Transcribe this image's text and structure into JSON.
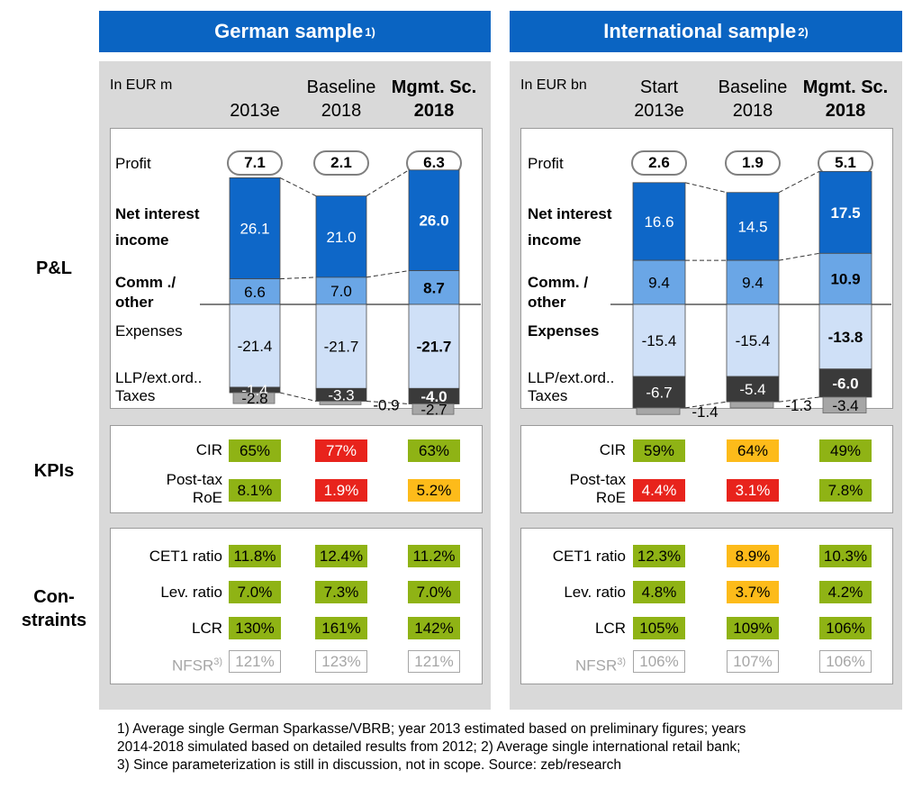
{
  "colors": {
    "header_blue": "#0a64c2",
    "nii": "#0e67c8",
    "comm": "#6aa6e6",
    "expenses": "#cfe0f7",
    "llp": "#3a3a3a",
    "taxes": "#a6a6a6",
    "kpi_green": "#8fb315",
    "kpi_red": "#e8231c",
    "kpi_amber": "#fdbb1a"
  },
  "row_labels": {
    "pl": "P&L",
    "kpis": "KPIs",
    "constraints": [
      "Con-",
      "straints"
    ]
  },
  "line_labels": {
    "profit": "Profit",
    "nii": [
      "Net interest",
      "income"
    ],
    "comm": [
      "Comm ./",
      "other"
    ],
    "comm_int": [
      "Comm. /",
      "other"
    ],
    "expenses": "Expenses",
    "llp": "LLP/ext.ord..",
    "taxes": "Taxes"
  },
  "kpi_labels": {
    "cir": "CIR",
    "roe": [
      "Post-tax",
      "RoE"
    ]
  },
  "constraint_labels": {
    "cet1": "CET1 ratio",
    "lev": "Lev. ratio",
    "lcr": "LCR",
    "nfsr": "NFSR",
    "nfsr_sup": "3)"
  },
  "footnote": [
    "1) Average single German Sparkasse/VBRB; year 2013 estimated based on preliminary figures; years",
    "2014-2018 simulated based on detailed results from 2012; 2) Average single international retail bank;",
    "3) Since parameterization is still in discussion, not in scope. Source: zeb/research"
  ],
  "chart_data": [
    {
      "type": "bar",
      "stacked": true,
      "title": "German sample",
      "title_sup": "1)",
      "unit": "In EUR m",
      "categories": [
        [
          "",
          "2013e"
        ],
        [
          "Baseline",
          "2018"
        ],
        [
          "Mgmt. Sc.",
          "2018"
        ]
      ],
      "profit": [
        "7.1",
        "2.1",
        "6.3"
      ],
      "series": [
        {
          "name": "Net interest income",
          "values": [
            26.1,
            21.0,
            26.0
          ],
          "labels": [
            "26.1",
            "21.0",
            "26.0"
          ]
        },
        {
          "name": "Comm ./ other",
          "values": [
            6.6,
            7.0,
            8.7
          ],
          "labels": [
            "6.6",
            "7.0",
            "8.7"
          ]
        },
        {
          "name": "Expenses",
          "values": [
            -21.4,
            -21.7,
            -21.7
          ],
          "labels": [
            "-21.4",
            "-21.7",
            "-21.7"
          ]
        },
        {
          "name": "LLP/ext.ord..",
          "values": [
            -1.4,
            -3.3,
            -4.0
          ],
          "labels": [
            "-1.4",
            "-3.3",
            "-4.0"
          ]
        },
        {
          "name": "Taxes",
          "values": [
            -2.8,
            -0.9,
            -2.7
          ],
          "labels": [
            "-2.8",
            "-0.9",
            "-2.7"
          ]
        }
      ],
      "kpis": {
        "cir": [
          {
            "v": "65%",
            "s": "green"
          },
          {
            "v": "77%",
            "s": "red"
          },
          {
            "v": "63%",
            "s": "green"
          }
        ],
        "roe": [
          {
            "v": "8.1%",
            "s": "green"
          },
          {
            "v": "1.9%",
            "s": "red"
          },
          {
            "v": "5.2%",
            "s": "amber"
          }
        ]
      },
      "constraints": {
        "cet1": [
          {
            "v": "11.8%",
            "s": "green"
          },
          {
            "v": "12.4%",
            "s": "green"
          },
          {
            "v": "11.2%",
            "s": "green"
          }
        ],
        "lev": [
          {
            "v": "7.0%",
            "s": "green"
          },
          {
            "v": "7.3%",
            "s": "green"
          },
          {
            "v": "7.0%",
            "s": "green"
          }
        ],
        "lcr": [
          {
            "v": "130%",
            "s": "green"
          },
          {
            "v": "161%",
            "s": "green"
          },
          {
            "v": "142%",
            "s": "green"
          }
        ],
        "nfsr": [
          {
            "v": "121%",
            "s": "grey"
          },
          {
            "v": "123%",
            "s": "grey"
          },
          {
            "v": "121%",
            "s": "grey"
          }
        ]
      }
    },
    {
      "type": "bar",
      "stacked": true,
      "title": "International sample",
      "title_sup": "2)",
      "unit": "In EUR bn",
      "categories": [
        [
          "Start",
          "2013e"
        ],
        [
          "Baseline",
          "2018"
        ],
        [
          "Mgmt. Sc.",
          "2018"
        ]
      ],
      "profit": [
        "2.6",
        "1.9",
        "5.1"
      ],
      "series": [
        {
          "name": "Net interest income",
          "values": [
            16.6,
            14.5,
            17.5
          ],
          "labels": [
            "16.6",
            "14.5",
            "17.5"
          ]
        },
        {
          "name": "Comm. / other",
          "values": [
            9.4,
            9.4,
            10.9
          ],
          "labels": [
            "9.4",
            "9.4",
            "10.9"
          ]
        },
        {
          "name": "Expenses",
          "values": [
            -15.4,
            -15.4,
            -13.8
          ],
          "labels": [
            "-15.4",
            "-15.4",
            "-13.8"
          ]
        },
        {
          "name": "LLP/ext.ord..",
          "values": [
            -6.7,
            -5.4,
            -6.0
          ],
          "labels": [
            "-6.7",
            "-5.4",
            "-6.0"
          ]
        },
        {
          "name": "Taxes",
          "values": [
            -1.4,
            -1.3,
            -3.4
          ],
          "labels": [
            "-1.4",
            "-1.3",
            "-3.4"
          ]
        }
      ],
      "kpis": {
        "cir": [
          {
            "v": "59%",
            "s": "green"
          },
          {
            "v": "64%",
            "s": "amber"
          },
          {
            "v": "49%",
            "s": "green"
          }
        ],
        "roe": [
          {
            "v": "4.4%",
            "s": "red"
          },
          {
            "v": "3.1%",
            "s": "red"
          },
          {
            "v": "7.8%",
            "s": "green"
          }
        ]
      },
      "constraints": {
        "cet1": [
          {
            "v": "12.3%",
            "s": "green"
          },
          {
            "v": "8.9%",
            "s": "amber"
          },
          {
            "v": "10.3%",
            "s": "green"
          }
        ],
        "lev": [
          {
            "v": "4.8%",
            "s": "green"
          },
          {
            "v": "3.7%",
            "s": "amber"
          },
          {
            "v": "4.2%",
            "s": "green"
          }
        ],
        "lcr": [
          {
            "v": "105%",
            "s": "green"
          },
          {
            "v": "109%",
            "s": "green"
          },
          {
            "v": "106%",
            "s": "green"
          }
        ],
        "nfsr": [
          {
            "v": "106%",
            "s": "grey"
          },
          {
            "v": "107%",
            "s": "grey"
          },
          {
            "v": "106%",
            "s": "grey"
          }
        ]
      }
    }
  ]
}
